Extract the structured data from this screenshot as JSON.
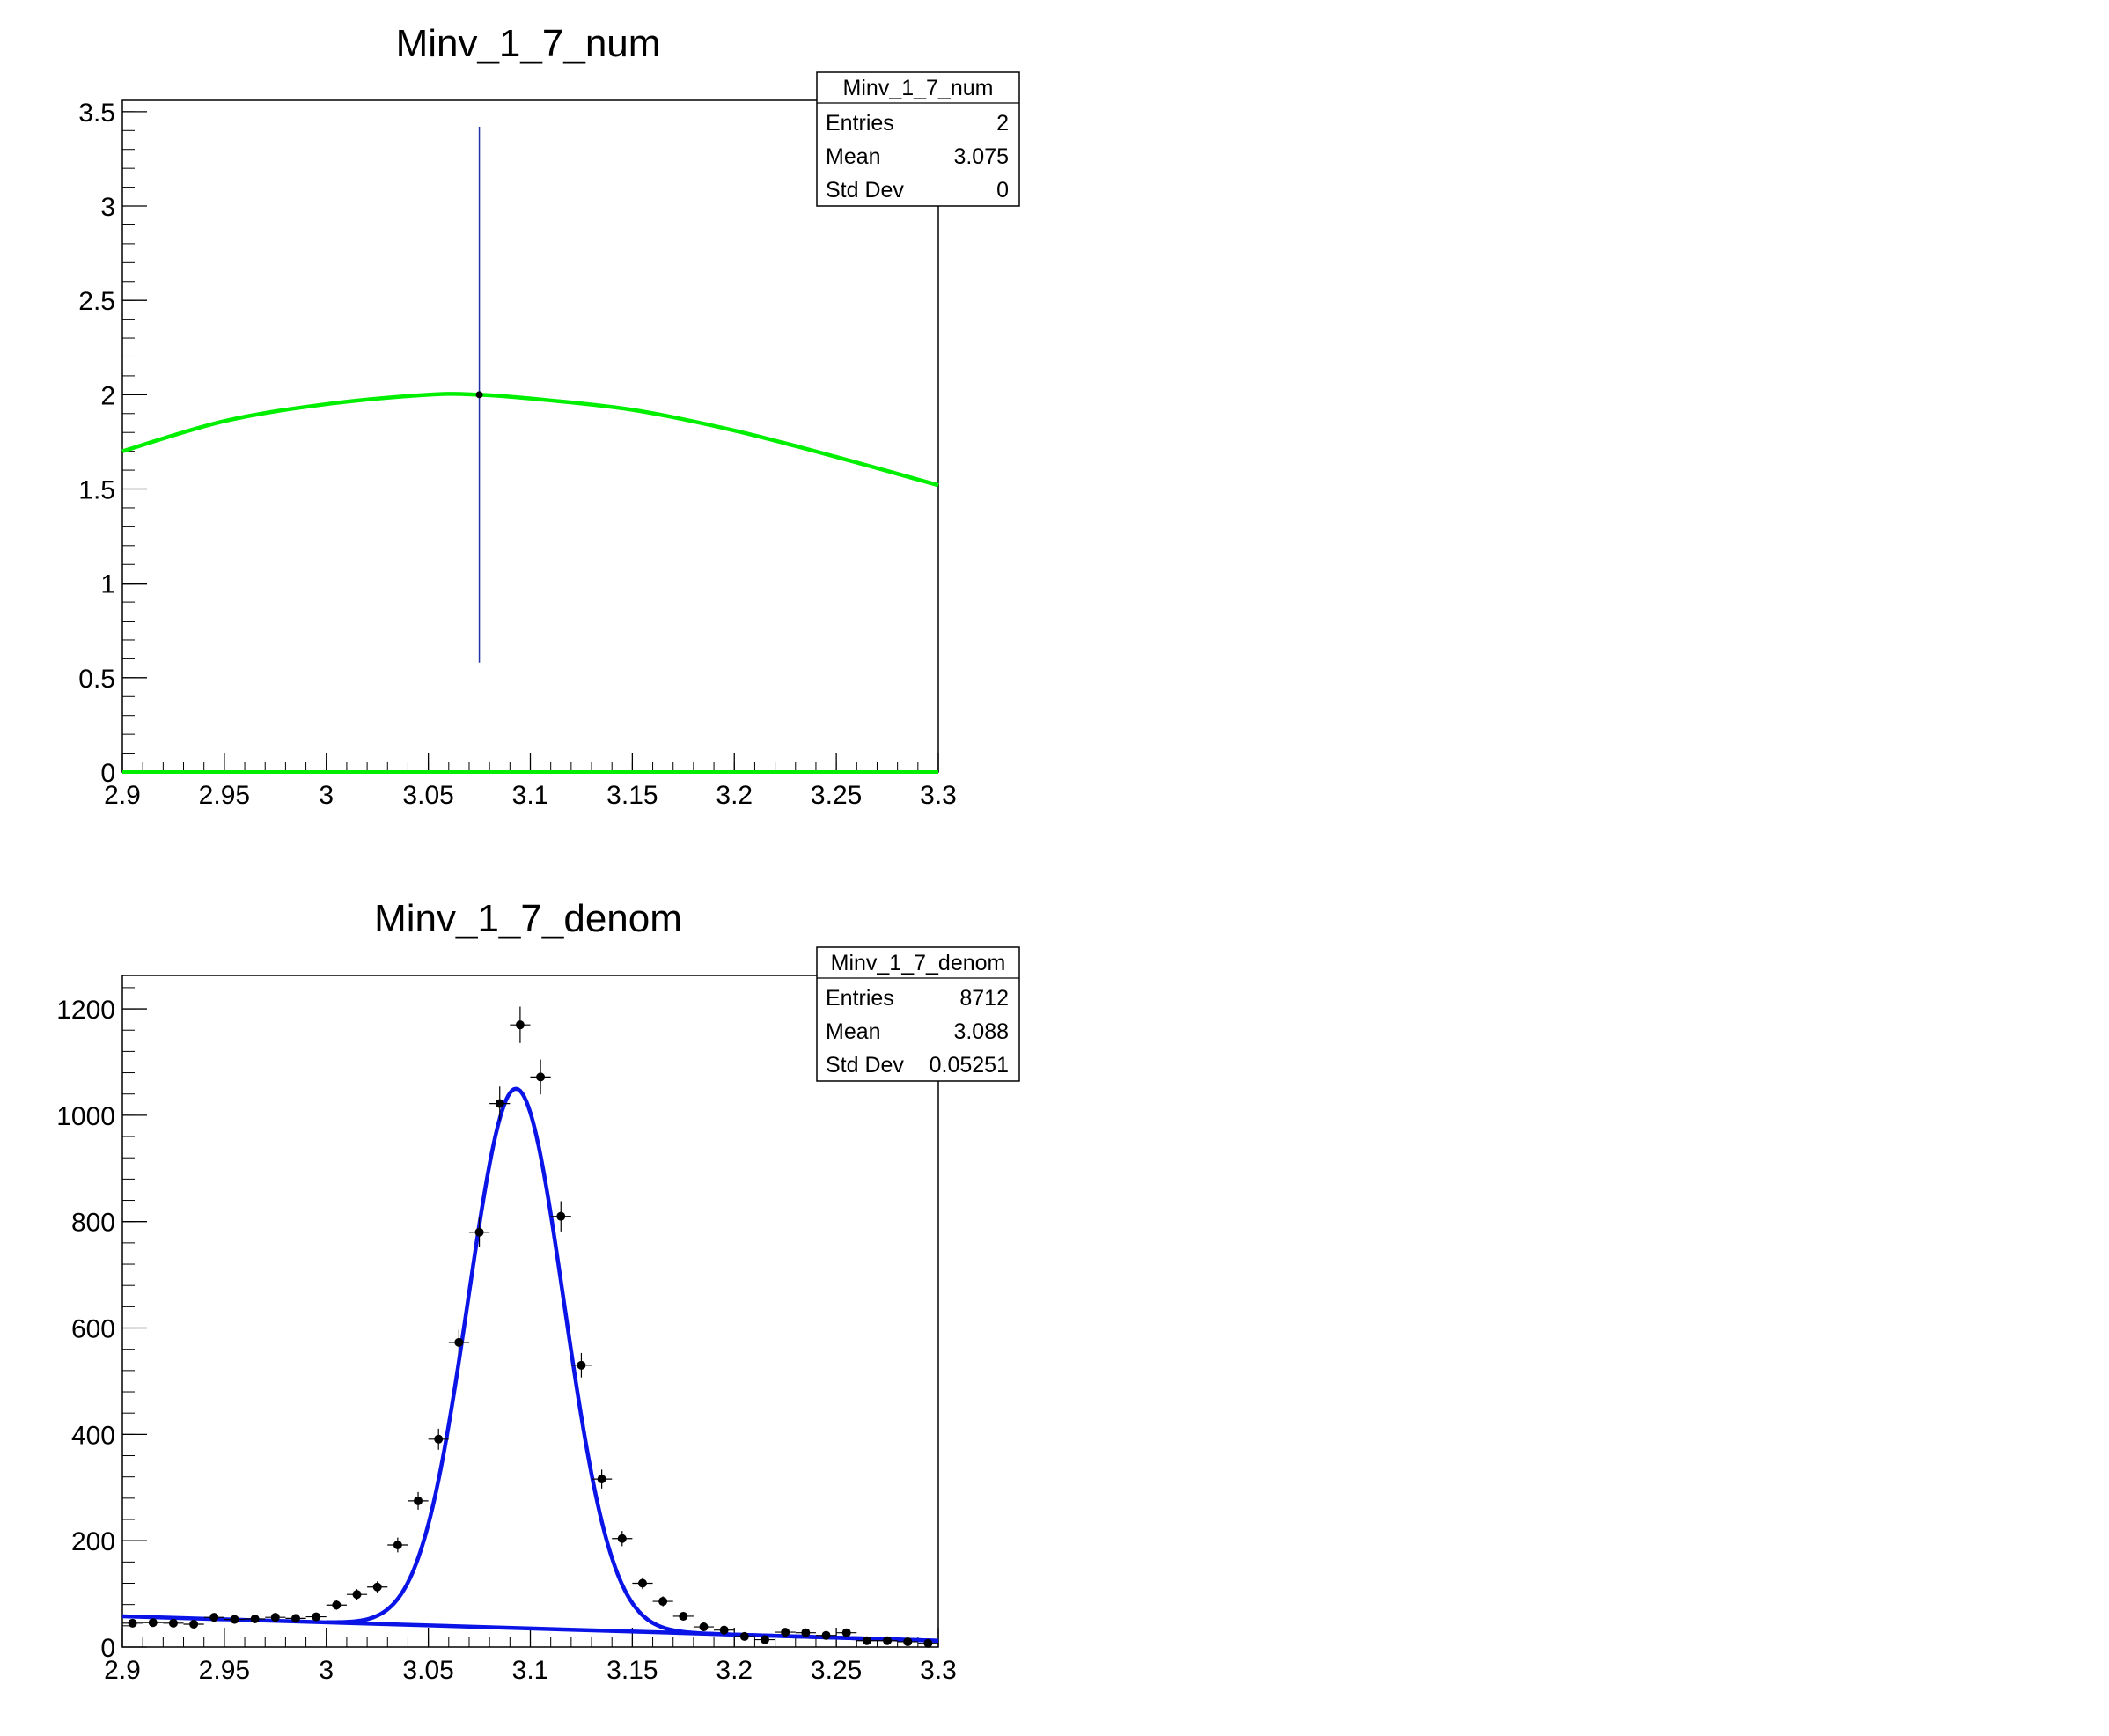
{
  "colors": {
    "frame": "#000000",
    "num_fit": "#00ee00",
    "num_error_bar": "#2233aa",
    "denom_fit": "#0a14e6",
    "denom_markers": "#000000"
  },
  "chart_data": [
    {
      "type": "scatter",
      "title": "Minv_1_7_num",
      "xlim": [
        2.9,
        3.3
      ],
      "ylim": [
        0,
        3.56
      ],
      "xticks": [
        "2.9",
        "2.95",
        "3",
        "3.05",
        "3.1",
        "3.15",
        "3.2",
        "3.25",
        "3.3"
      ],
      "xtick_values": [
        2.9,
        2.95,
        3.0,
        3.05,
        3.1,
        3.15,
        3.2,
        3.25,
        3.3
      ],
      "yticks": [
        "0",
        "0.5",
        "1",
        "1.5",
        "2",
        "2.5",
        "3",
        "3.5"
      ],
      "ytick_values": [
        0,
        0.5,
        1,
        1.5,
        2,
        2.5,
        3,
        3.5
      ],
      "grid": false,
      "stats_box": {
        "name": "Minv_1_7_num",
        "rows": [
          {
            "label": "Entries",
            "value": "2"
          },
          {
            "label": "Mean",
            "value": "3.075"
          },
          {
            "label": "Std Dev",
            "value": "0"
          }
        ]
      },
      "points": [
        {
          "x": 3.075,
          "y": 2.0,
          "yerr_low": 1.42,
          "yerr_high": 1.42
        }
      ],
      "fit_curve": {
        "color": "#00ee00",
        "description_values": {
          "center": 3.065,
          "peak": 2.0,
          "sigma": 0.25
        },
        "samples": [
          [
            2.9,
            1.7
          ],
          [
            2.95,
            1.86
          ],
          [
            3.0,
            1.95
          ],
          [
            3.05,
            2.0
          ],
          [
            3.075,
            2.0
          ],
          [
            3.1,
            1.98
          ],
          [
            3.15,
            1.92
          ],
          [
            3.2,
            1.81
          ],
          [
            3.25,
            1.67
          ],
          [
            3.3,
            1.52
          ]
        ]
      },
      "baseline": {
        "color": "#00ee00",
        "y": 0
      }
    },
    {
      "type": "scatter",
      "title": "Minv_1_7_denom",
      "xlim": [
        2.9,
        3.3
      ],
      "ylim": [
        0,
        1263
      ],
      "xticks": [
        "2.9",
        "2.95",
        "3",
        "3.05",
        "3.1",
        "3.15",
        "3.2",
        "3.25",
        "3.3"
      ],
      "xtick_values": [
        2.9,
        2.95,
        3.0,
        3.05,
        3.1,
        3.15,
        3.2,
        3.25,
        3.3
      ],
      "yticks": [
        "0",
        "200",
        "400",
        "600",
        "800",
        "1000",
        "1200"
      ],
      "ytick_values": [
        0,
        200,
        400,
        600,
        800,
        1000,
        1200
      ],
      "grid": false,
      "stats_box": {
        "name": "Minv_1_7_denom",
        "rows": [
          {
            "label": "Entries",
            "value": "8712"
          },
          {
            "label": "Mean",
            "value": "3.088"
          },
          {
            "label": "Std Dev",
            "value": "0.05251"
          }
        ]
      },
      "bin_width": 0.01,
      "points": [
        {
          "x": 2.905,
          "y": 45
        },
        {
          "x": 2.915,
          "y": 46
        },
        {
          "x": 2.925,
          "y": 45
        },
        {
          "x": 2.935,
          "y": 43
        },
        {
          "x": 2.945,
          "y": 56
        },
        {
          "x": 2.955,
          "y": 52
        },
        {
          "x": 2.965,
          "y": 53
        },
        {
          "x": 2.975,
          "y": 56
        },
        {
          "x": 2.985,
          "y": 54
        },
        {
          "x": 2.995,
          "y": 57
        },
        {
          "x": 3.005,
          "y": 79
        },
        {
          "x": 3.015,
          "y": 99
        },
        {
          "x": 3.025,
          "y": 113
        },
        {
          "x": 3.035,
          "y": 192
        },
        {
          "x": 3.045,
          "y": 275
        },
        {
          "x": 3.055,
          "y": 391
        },
        {
          "x": 3.065,
          "y": 573
        },
        {
          "x": 3.075,
          "y": 780
        },
        {
          "x": 3.085,
          "y": 1022
        },
        {
          "x": 3.095,
          "y": 1170
        },
        {
          "x": 3.105,
          "y": 1072
        },
        {
          "x": 3.115,
          "y": 810
        },
        {
          "x": 3.125,
          "y": 530
        },
        {
          "x": 3.135,
          "y": 316
        },
        {
          "x": 3.145,
          "y": 204
        },
        {
          "x": 3.155,
          "y": 120
        },
        {
          "x": 3.165,
          "y": 86
        },
        {
          "x": 3.175,
          "y": 58
        },
        {
          "x": 3.185,
          "y": 38
        },
        {
          "x": 3.195,
          "y": 32
        },
        {
          "x": 3.205,
          "y": 20
        },
        {
          "x": 3.215,
          "y": 14
        },
        {
          "x": 3.225,
          "y": 28
        },
        {
          "x": 3.235,
          "y": 27
        },
        {
          "x": 3.245,
          "y": 22
        },
        {
          "x": 3.255,
          "y": 27
        },
        {
          "x": 3.265,
          "y": 12
        },
        {
          "x": 3.275,
          "y": 12
        },
        {
          "x": 3.285,
          "y": 10
        },
        {
          "x": 3.295,
          "y": 7
        }
      ],
      "fit_curve": {
        "color": "#0a14e6",
        "gauss": {
          "amplitude": 1014,
          "mean": 3.093,
          "sigma": 0.0235
        },
        "background": {
          "y_at_2_9": 58,
          "y_at_3_3": 12
        }
      },
      "background_line": {
        "color": "#0a14e6",
        "x": [
          2.9,
          3.3
        ],
        "y": [
          58,
          12
        ]
      }
    }
  ]
}
